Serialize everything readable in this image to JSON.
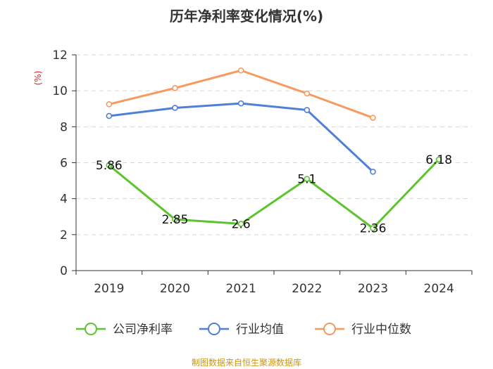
{
  "chart_data": {
    "type": "line",
    "title": "历年净利率变化情况(%)",
    "ylabel": "(%)",
    "categories": [
      "2019",
      "2020",
      "2021",
      "2022",
      "2023",
      "2024"
    ],
    "ylim": [
      0,
      12
    ],
    "yticks": [
      0,
      2,
      4,
      6,
      8,
      10,
      12
    ],
    "grid": true,
    "legend_position": "bottom",
    "series": [
      {
        "name": "公司净利率",
        "color": "#5cc42d",
        "values": [
          5.86,
          2.85,
          2.6,
          5.1,
          2.36,
          6.18
        ],
        "labels": [
          "5.86",
          "2.85",
          "2.6",
          "5.1",
          "2.36",
          "6.18"
        ]
      },
      {
        "name": "行业均值",
        "color": "#4f7fdb",
        "values": [
          8.6,
          9.05,
          9.3,
          8.93,
          5.5,
          null
        ]
      },
      {
        "name": "行业中位数",
        "color": "#f79a5f",
        "values": [
          9.25,
          10.15,
          11.13,
          9.85,
          8.5,
          null
        ]
      }
    ],
    "source": "制图数据来自恒生聚源数据库",
    "colors": {
      "ylabel": "#e02020",
      "source": "#c8961e",
      "axis": "#333333",
      "grid": "#d6d6d6"
    }
  }
}
